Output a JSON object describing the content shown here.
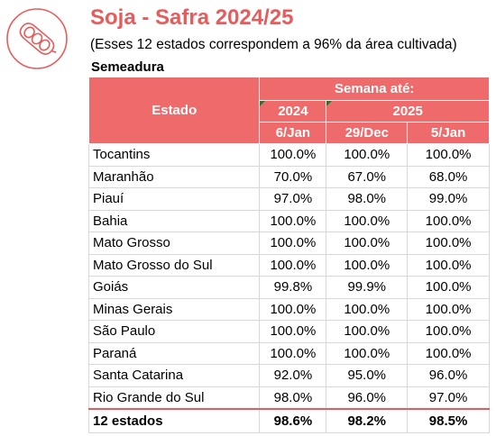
{
  "title": "Soja - Safra 2024/25",
  "subtitle": "(Esses 12 estados correspondem a 96% da área cultivada)",
  "section": "Semeadura",
  "colors": {
    "accent": "#e65c5c",
    "header_bg": "#ef6a6a"
  },
  "logo_icon": "soybean-pod-icon",
  "table": {
    "col_estado": "Estado",
    "group_header": "Semana até:",
    "year1": "2024",
    "year2": "2025",
    "date1": "6/Jan",
    "date2": "29/Dec",
    "date3": "5/Jan",
    "rows": [
      {
        "estado": "Tocantins",
        "v1": "100.0%",
        "v2": "100.0%",
        "v3": "100.0%"
      },
      {
        "estado": "Maranhão",
        "v1": "70.0%",
        "v2": "67.0%",
        "v3": "68.0%"
      },
      {
        "estado": "Piauí",
        "v1": "97.0%",
        "v2": "98.0%",
        "v3": "99.0%"
      },
      {
        "estado": "Bahia",
        "v1": "100.0%",
        "v2": "100.0%",
        "v3": "100.0%"
      },
      {
        "estado": "Mato Grosso",
        "v1": "100.0%",
        "v2": "100.0%",
        "v3": "100.0%"
      },
      {
        "estado": "Mato Grosso do Sul",
        "v1": "100.0%",
        "v2": "100.0%",
        "v3": "100.0%"
      },
      {
        "estado": "Goiás",
        "v1": "99.8%",
        "v2": "99.9%",
        "v3": "100.0%"
      },
      {
        "estado": "Minas Gerais",
        "v1": "100.0%",
        "v2": "100.0%",
        "v3": "100.0%"
      },
      {
        "estado": "São Paulo",
        "v1": "100.0%",
        "v2": "100.0%",
        "v3": "100.0%"
      },
      {
        "estado": "Paraná",
        "v1": "100.0%",
        "v2": "100.0%",
        "v3": "100.0%"
      },
      {
        "estado": "Santa Catarina",
        "v1": "92.0%",
        "v2": "95.0%",
        "v3": "96.0%"
      },
      {
        "estado": "Rio Grande do Sul",
        "v1": "98.0%",
        "v2": "96.0%",
        "v3": "97.0%"
      }
    ],
    "total": {
      "estado": "12 estados",
      "v1": "98.6%",
      "v2": "98.2%",
      "v3": "98.5%"
    }
  }
}
